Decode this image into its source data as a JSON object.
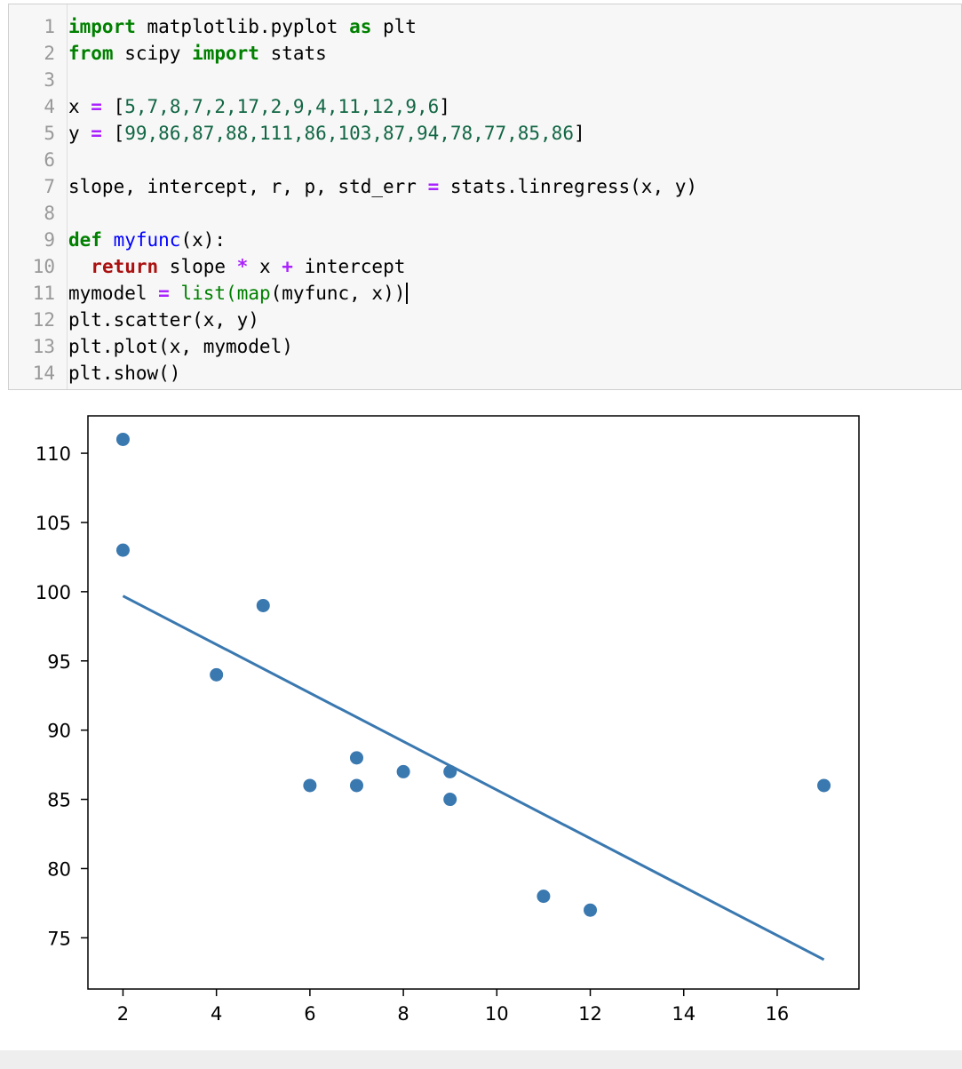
{
  "code": {
    "line_numbers": [
      "1",
      "2",
      "3",
      "4",
      "5",
      "6",
      "7",
      "8",
      "9",
      "10",
      "11",
      "12",
      "13",
      "14"
    ],
    "l1": {
      "kw1": "import",
      "mod": " matplotlib.pyplot ",
      "kw2": "as",
      "alias": " plt"
    },
    "l2": {
      "kw1": "from",
      "mod": " scipy ",
      "kw2": "import",
      "name": " stats"
    },
    "l4": {
      "var": "x ",
      "op": "=",
      "open": " [",
      "vals": "5,7,8,7,2,17,2,9,4,11,12,9,6",
      "close": "]"
    },
    "l5": {
      "var": "y ",
      "op": "=",
      "open": " [",
      "vals": "99,86,87,88,111,86,103,87,94,78,77,85,86",
      "close": "]"
    },
    "l7": {
      "lhs": "slope, intercept, r, p, std_err ",
      "op": "=",
      "rhs": " stats.linregress(x, y)"
    },
    "l9": {
      "kw": "def",
      "sp": " ",
      "fn": "myfunc",
      "rest": "(x):"
    },
    "l10": {
      "indent": "  ",
      "kw": "return",
      "a": " slope ",
      "op1": "*",
      "b": " x ",
      "op2": "+",
      "c": " intercept"
    },
    "l11": {
      "lhs": "mymodel ",
      "op": "=",
      "sp": " ",
      "fn1": "list",
      "p1": "(",
      "fn2": "map",
      "rest": "(myfunc, x))"
    },
    "l12": "plt.scatter(x, y)",
    "l13": "plt.plot(x, mymodel)",
    "l14": "plt.show()"
  },
  "colors": {
    "keyword": "#008000",
    "return_keyword": "#aa1111",
    "number": "#116644",
    "operator": "#aa22ff",
    "function_name": "#0000ff",
    "line_number": "#999999",
    "series": "#3a78b0"
  },
  "chart_data": {
    "type": "scatter",
    "x": [
      5,
      7,
      8,
      7,
      2,
      17,
      2,
      9,
      4,
      11,
      12,
      9,
      6
    ],
    "y": [
      99,
      86,
      87,
      88,
      111,
      86,
      103,
      87,
      94,
      78,
      77,
      85,
      86
    ],
    "regression_line": {
      "x": [
        2,
        17
      ],
      "y": [
        99.69,
        73.42
      ]
    },
    "xticks": [
      2,
      4,
      6,
      8,
      10,
      12,
      14,
      16
    ],
    "yticks": [
      75,
      80,
      85,
      90,
      95,
      100,
      105,
      110
    ],
    "xlim": [
      1.25,
      17.75
    ],
    "ylim": [
      71.3,
      112.7
    ],
    "grid": false,
    "title": "",
    "xlabel": "",
    "ylabel": ""
  }
}
